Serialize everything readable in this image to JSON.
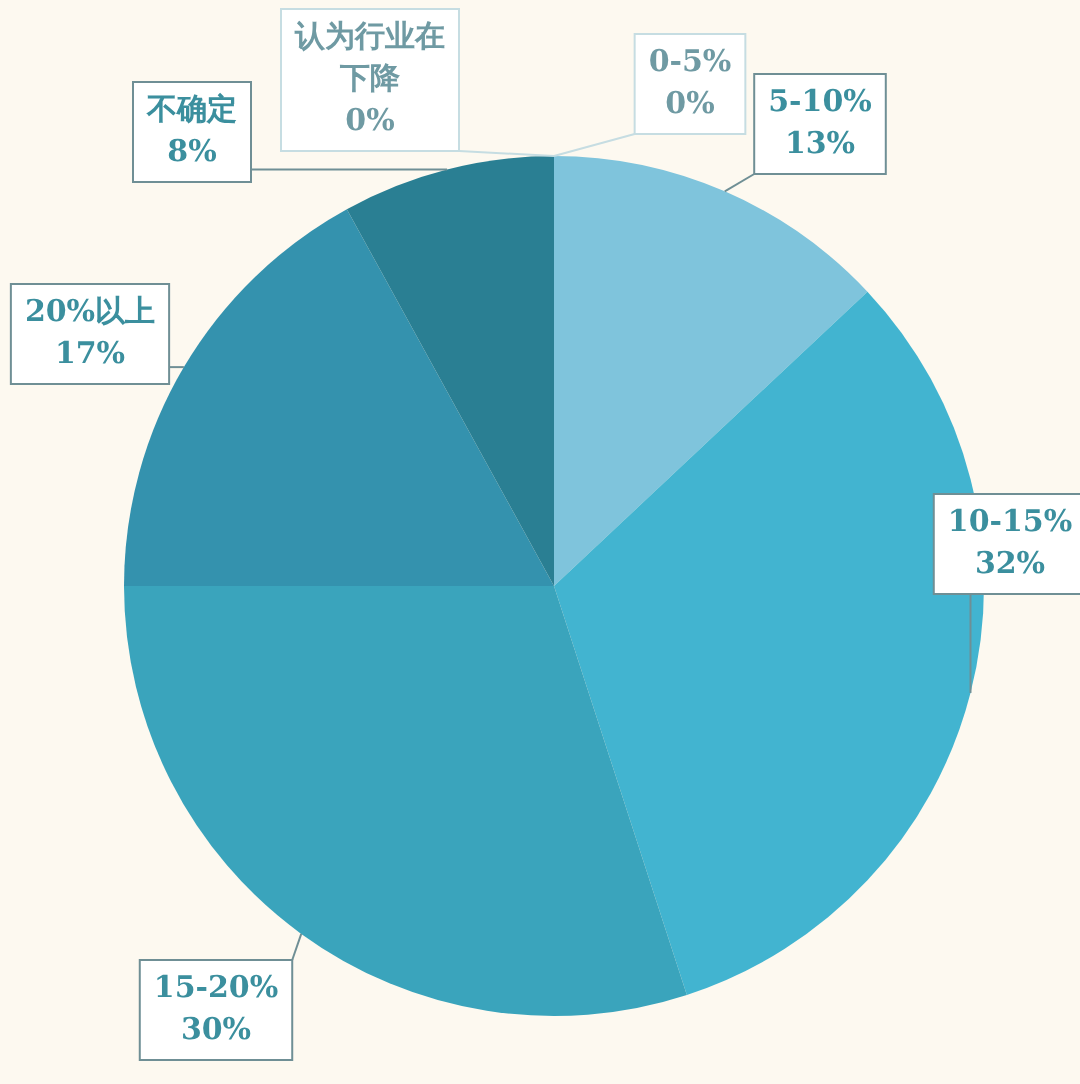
{
  "chart_data": {
    "type": "pie",
    "categories": [
      "0-5%",
      "5-10%",
      "10-15%",
      "15-20%",
      "20%以上",
      "不确定",
      "认为行业在下降"
    ],
    "values": [
      0,
      13,
      32,
      30,
      17,
      8,
      0
    ],
    "value_labels": [
      "0%",
      "13%",
      "32%",
      "30%",
      "17%",
      "8%",
      "0%"
    ],
    "colors": [
      "#c6dde2",
      "#7fc4dc",
      "#42b4d0",
      "#3aa4bc",
      "#3492ae",
      "#2a7f93",
      "#c6dde2"
    ],
    "legend": false
  }
}
